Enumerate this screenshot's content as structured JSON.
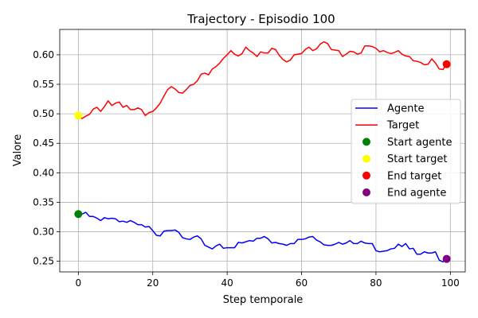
{
  "chart_data": {
    "type": "line",
    "title": "Trajectory - Episodio 100",
    "xlabel": "Step temporale",
    "ylabel": "Valore",
    "xlim": [
      -5,
      104
    ],
    "ylim": [
      0.232,
      0.643
    ],
    "xticks": [
      0,
      20,
      40,
      60,
      80,
      100
    ],
    "yticks": [
      0.25,
      0.3,
      0.35,
      0.4,
      0.45,
      0.5,
      0.55,
      0.6
    ],
    "grid": true,
    "legend_position": "center-right",
    "x": [
      0,
      1,
      2,
      3,
      4,
      5,
      6,
      7,
      8,
      9,
      10,
      11,
      12,
      13,
      14,
      15,
      16,
      17,
      18,
      19,
      20,
      21,
      22,
      23,
      24,
      25,
      26,
      27,
      28,
      29,
      30,
      31,
      32,
      33,
      34,
      35,
      36,
      37,
      38,
      39,
      40,
      41,
      42,
      43,
      44,
      45,
      46,
      47,
      48,
      49,
      50,
      51,
      52,
      53,
      54,
      55,
      56,
      57,
      58,
      59,
      60,
      61,
      62,
      63,
      64,
      65,
      66,
      67,
      68,
      69,
      70,
      71,
      72,
      73,
      74,
      75,
      76,
      77,
      78,
      79,
      80,
      81,
      82,
      83,
      84,
      85,
      86,
      87,
      88,
      89,
      90,
      91,
      92,
      93,
      94,
      95,
      96,
      97,
      98,
      99
    ],
    "series": [
      {
        "name": "Agente",
        "color": "#0000ff",
        "values": [
          0.33,
          0.33,
          0.333,
          0.326,
          0.326,
          0.323,
          0.319,
          0.324,
          0.322,
          0.323,
          0.322,
          0.317,
          0.318,
          0.316,
          0.319,
          0.316,
          0.312,
          0.312,
          0.308,
          0.309,
          0.302,
          0.294,
          0.293,
          0.301,
          0.302,
          0.302,
          0.303,
          0.299,
          0.29,
          0.288,
          0.287,
          0.291,
          0.293,
          0.288,
          0.277,
          0.274,
          0.271,
          0.276,
          0.279,
          0.272,
          0.273,
          0.273,
          0.273,
          0.282,
          0.281,
          0.283,
          0.285,
          0.284,
          0.289,
          0.289,
          0.292,
          0.288,
          0.281,
          0.282,
          0.28,
          0.279,
          0.277,
          0.28,
          0.28,
          0.287,
          0.287,
          0.288,
          0.291,
          0.292,
          0.286,
          0.283,
          0.278,
          0.277,
          0.277,
          0.279,
          0.282,
          0.279,
          0.281,
          0.285,
          0.28,
          0.28,
          0.284,
          0.281,
          0.28,
          0.28,
          0.268,
          0.266,
          0.267,
          0.268,
          0.271,
          0.272,
          0.279,
          0.275,
          0.28,
          0.271,
          0.272,
          0.262,
          0.262,
          0.266,
          0.264,
          0.264,
          0.266,
          0.252,
          0.249,
          0.254
        ]
      },
      {
        "name": "Target",
        "color": "#ff0000",
        "values": [
          0.497,
          0.492,
          0.496,
          0.499,
          0.508,
          0.511,
          0.504,
          0.512,
          0.522,
          0.514,
          0.518,
          0.52,
          0.511,
          0.514,
          0.507,
          0.507,
          0.51,
          0.507,
          0.497,
          0.502,
          0.504,
          0.51,
          0.518,
          0.53,
          0.541,
          0.546,
          0.542,
          0.536,
          0.535,
          0.541,
          0.548,
          0.55,
          0.556,
          0.567,
          0.569,
          0.566,
          0.576,
          0.58,
          0.586,
          0.594,
          0.6,
          0.607,
          0.601,
          0.598,
          0.602,
          0.613,
          0.607,
          0.603,
          0.597,
          0.605,
          0.603,
          0.603,
          0.611,
          0.609,
          0.599,
          0.592,
          0.588,
          0.591,
          0.6,
          0.601,
          0.602,
          0.609,
          0.613,
          0.607,
          0.61,
          0.618,
          0.622,
          0.619,
          0.609,
          0.608,
          0.607,
          0.597,
          0.601,
          0.606,
          0.605,
          0.601,
          0.603,
          0.615,
          0.615,
          0.614,
          0.611,
          0.605,
          0.607,
          0.604,
          0.602,
          0.604,
          0.607,
          0.601,
          0.598,
          0.597,
          0.59,
          0.589,
          0.587,
          0.583,
          0.584,
          0.593,
          0.586,
          0.576,
          0.575,
          0.584
        ]
      }
    ],
    "markers": [
      {
        "name": "Start agente",
        "color": "#008000",
        "x": 0,
        "y": 0.33
      },
      {
        "name": "Start target",
        "color": "#ffff00",
        "x": 0,
        "y": 0.497
      },
      {
        "name": "End target",
        "color": "#ff0000",
        "x": 99,
        "y": 0.584
      },
      {
        "name": "End agente",
        "color": "#800080",
        "x": 99,
        "y": 0.254
      }
    ],
    "legend": [
      "Agente",
      "Target",
      "Start agente",
      "Start target",
      "End target",
      "End agente"
    ]
  }
}
